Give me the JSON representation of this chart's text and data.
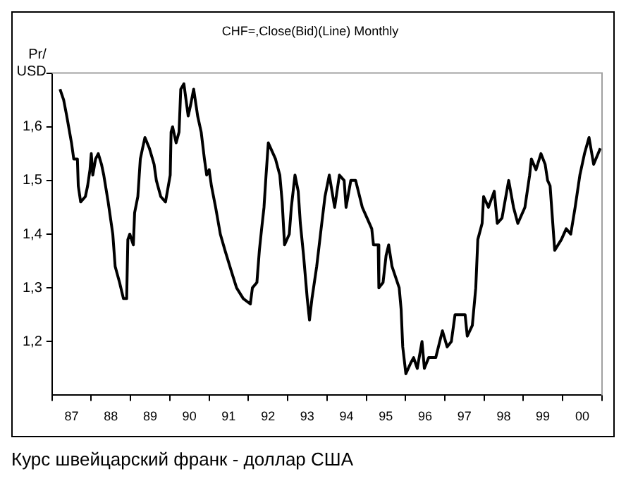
{
  "chart_data": {
    "type": "line",
    "title": "CHF=,Close(Bid)(Line) Monthly",
    "ylabel": "Pr/\nUSD",
    "annotations": [
      "Курс швейцарский франк - доллар США"
    ],
    "xlim": [
      "1987",
      "2001"
    ],
    "xticks": [
      {
        "value": "1987",
        "label": null
      },
      {
        "value": "1987-07",
        "label": "87"
      },
      {
        "value": "1988",
        "label": null
      },
      {
        "value": "1988-07",
        "label": "88"
      },
      {
        "value": "1989",
        "label": null
      },
      {
        "value": "1989-07",
        "label": "89"
      },
      {
        "value": "1990",
        "label": null
      },
      {
        "value": "1990-07",
        "label": "90"
      },
      {
        "value": "1991",
        "label": null
      },
      {
        "value": "1991-07",
        "label": "91"
      },
      {
        "value": "1992",
        "label": null
      },
      {
        "value": "1992-07",
        "label": "92"
      },
      {
        "value": "1993",
        "label": null
      },
      {
        "value": "1993-07",
        "label": "93"
      },
      {
        "value": "1994",
        "label": null
      },
      {
        "value": "1994-07",
        "label": "94"
      },
      {
        "value": "1995",
        "label": null
      },
      {
        "value": "1995-07",
        "label": "95"
      },
      {
        "value": "1996",
        "label": null
      },
      {
        "value": "1996-07",
        "label": "96"
      },
      {
        "value": "1997",
        "label": null
      },
      {
        "value": "1997-07",
        "label": "97"
      },
      {
        "value": "1998",
        "label": null
      },
      {
        "value": "1998-07",
        "label": "98"
      },
      {
        "value": "1999",
        "label": null
      },
      {
        "value": "1999-07",
        "label": "99"
      },
      {
        "value": "2000",
        "label": null
      },
      {
        "value": "2000-07",
        "label": "00"
      },
      {
        "value": "2001",
        "label": null
      }
    ],
    "ylim": [
      1.1,
      1.7
    ],
    "yticks": [
      {
        "value": 1.2,
        "label": "1,2"
      },
      {
        "value": 1.3,
        "label": "1,3"
      },
      {
        "value": 1.4,
        "label": "1,4"
      },
      {
        "value": 1.5,
        "label": "1,5"
      },
      {
        "value": 1.6,
        "label": "1,6"
      },
      {
        "value": 1.7,
        "label": null
      }
    ],
    "grid": false,
    "legend": false,
    "marker": "none",
    "line_style": "solid",
    "series": [
      {
        "color": "#000000",
        "x": [
          "1987-03-16",
          "1987-04-19",
          "1987-05-18",
          "1987-07-01",
          "1987-07-22",
          "1987-08-25",
          "1987-09-02",
          "1987-09-24",
          "1987-11-07",
          "1987-11-28",
          "1987-12-20",
          "1988-01-01",
          "1988-01-15",
          "1988-02-10",
          "1988-03-06",
          "1988-04-05",
          "1988-04-26",
          "1988-06-06",
          "1988-07-19",
          "1988-08-10",
          "1988-09-20",
          "1988-10-26",
          "1988-11-25",
          "1988-12-06",
          "1988-12-24",
          "1989-01-26",
          "1989-02-07",
          "1989-03-09",
          "1989-04-01",
          "1989-04-22",
          "1989-05-14",
          "1989-06-24",
          "1989-08-07",
          "1989-08-28",
          "1989-10-08",
          "1989-11-21",
          "1990-01-04",
          "1990-01-12",
          "1990-01-26",
          "1990-02-28",
          "1990-03-27",
          "1990-04-12",
          "1990-05-11",
          "1990-06-20",
          "1990-07-12",
          "1990-08-10",
          "1990-09-16",
          "1990-10-19",
          "1990-11-18",
          "1990-12-09",
          "1991-01-01",
          "1991-01-22",
          "1991-03-02",
          "1991-04-15",
          "1991-05-28",
          "1991-07-28",
          "1991-09-13",
          "1991-11-14",
          "1992-01-19",
          "1992-02-07",
          "1992-03-20",
          "1992-04-12",
          "1992-05-03",
          "1992-05-25",
          "1992-06-13",
          "1992-07-04",
          "1992-09-09",
          "1992-10-19",
          "1992-11-10",
          "1992-12-02",
          "1993-01-15",
          "1993-02-03",
          "1993-03-09",
          "1993-04-08",
          "1993-04-28",
          "1993-05-28",
          "1993-07-01",
          "1993-07-22",
          "1993-08-14",
          "1993-09-27",
          "1993-11-07",
          "1993-12-13",
          "1994-01-22",
          "1994-03-13",
          "1994-04-26",
          "1994-06-09",
          "1994-06-27",
          "1994-08-10",
          "1994-09-24",
          "1994-11-25",
          "1995-01-08",
          "1995-02-21",
          "1995-03-09",
          "1995-04-22",
          "1995-04-28",
          "1995-06-06",
          "1995-07-04",
          "1995-07-28",
          "1995-08-28",
          "1995-11-03",
          "1995-11-21",
          "1995-12-06",
          "1996-01-04",
          "1996-02-18",
          "1996-03-16",
          "1996-04-19",
          "1996-06-02",
          "1996-06-24",
          "1996-08-03",
          "1996-10-08",
          "1996-12-09",
          "1997-01-22",
          "1997-03-02",
          "1997-04-05",
          "1997-07-08",
          "1997-07-28",
          "1997-09-13",
          "1997-10-15",
          "1997-11-03",
          "1997-12-13",
          "1997-12-27",
          "1998-02-10",
          "1998-04-05",
          "1998-05-03",
          "1998-06-16",
          "1998-08-17",
          "1998-10-01",
          "1998-11-10",
          "1999-01-15",
          "1999-02-28",
          "1999-03-16",
          "1999-04-28",
          "1999-06-13",
          "1999-07-22",
          "1999-08-14",
          "1999-09-06",
          "1999-10-19",
          "1999-12-20",
          "2000-02-03",
          "2000-03-16",
          "2000-04-26",
          "2000-06-09",
          "2000-07-22",
          "2000-09-02",
          "2000-10-15",
          "2000-12-16"
        ],
        "values": [
          1.67,
          1.65,
          1.62,
          1.57,
          1.54,
          1.54,
          1.49,
          1.46,
          1.47,
          1.49,
          1.52,
          1.55,
          1.51,
          1.54,
          1.55,
          1.53,
          1.51,
          1.46,
          1.4,
          1.34,
          1.31,
          1.28,
          1.28,
          1.39,
          1.4,
          1.38,
          1.44,
          1.47,
          1.54,
          1.56,
          1.58,
          1.56,
          1.53,
          1.5,
          1.47,
          1.46,
          1.51,
          1.59,
          1.6,
          1.57,
          1.59,
          1.67,
          1.68,
          1.62,
          1.64,
          1.67,
          1.62,
          1.59,
          1.54,
          1.51,
          1.52,
          1.49,
          1.45,
          1.4,
          1.37,
          1.33,
          1.3,
          1.28,
          1.27,
          1.3,
          1.31,
          1.37,
          1.41,
          1.45,
          1.51,
          1.57,
          1.54,
          1.51,
          1.46,
          1.38,
          1.4,
          1.45,
          1.51,
          1.48,
          1.42,
          1.36,
          1.28,
          1.24,
          1.28,
          1.34,
          1.41,
          1.47,
          1.51,
          1.45,
          1.51,
          1.5,
          1.45,
          1.5,
          1.5,
          1.45,
          1.43,
          1.41,
          1.38,
          1.38,
          1.3,
          1.31,
          1.36,
          1.38,
          1.34,
          1.3,
          1.26,
          1.19,
          1.14,
          1.16,
          1.17,
          1.15,
          1.2,
          1.15,
          1.17,
          1.17,
          1.22,
          1.19,
          1.2,
          1.25,
          1.25,
          1.21,
          1.23,
          1.3,
          1.39,
          1.42,
          1.47,
          1.45,
          1.48,
          1.42,
          1.43,
          1.5,
          1.45,
          1.42,
          1.45,
          1.51,
          1.54,
          1.52,
          1.55,
          1.53,
          1.5,
          1.49,
          1.37,
          1.39,
          1.41,
          1.4,
          1.45,
          1.51,
          1.55,
          1.58,
          1.53,
          1.56
        ]
      }
    ]
  }
}
